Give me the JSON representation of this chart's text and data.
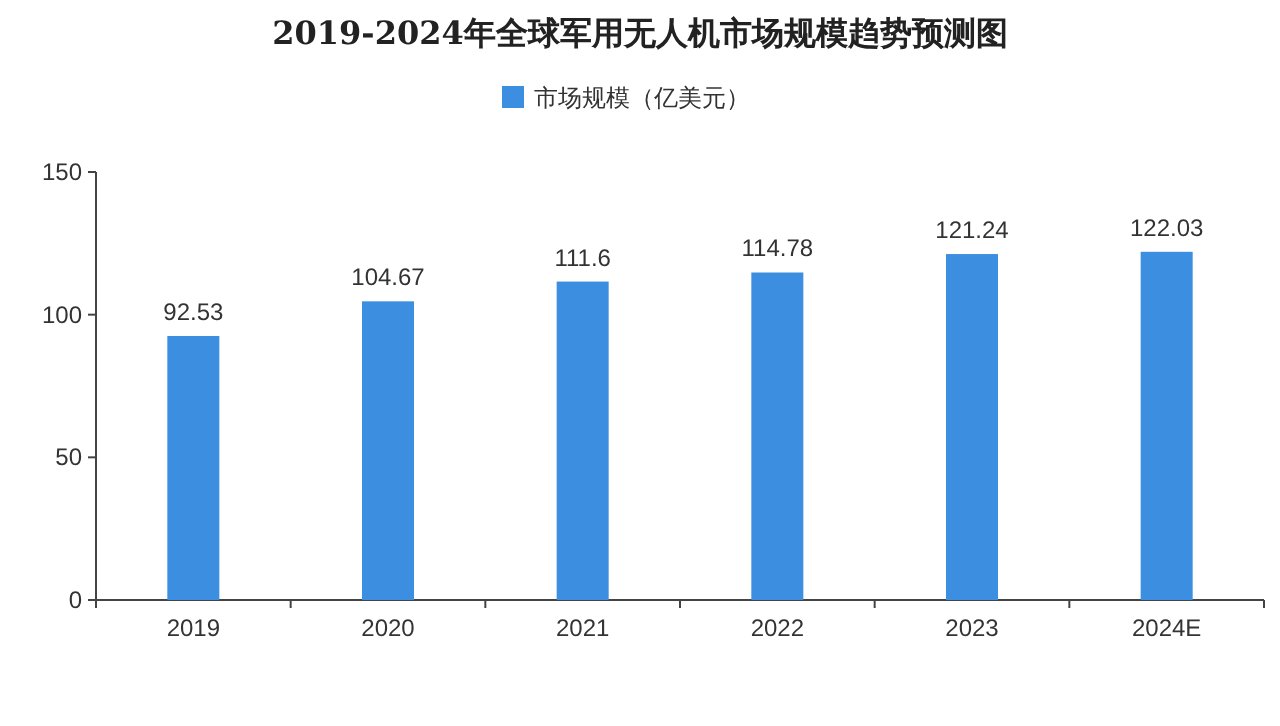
{
  "chart_data": {
    "type": "bar",
    "title": "2019-2024年全球军用无人机市场规模趋势预测图",
    "categories": [
      "2019",
      "2020",
      "2021",
      "2022",
      "2023",
      "2024E"
    ],
    "series": [
      {
        "name": "市场规模（亿美元）",
        "color": "#3c8ee0",
        "values": [
          92.53,
          104.67,
          111.6,
          114.78,
          121.24,
          122.03
        ]
      }
    ],
    "ylim": [
      0,
      150
    ],
    "yticks": [
      0,
      50,
      100,
      150
    ],
    "data_labels": true,
    "legend": "top"
  }
}
